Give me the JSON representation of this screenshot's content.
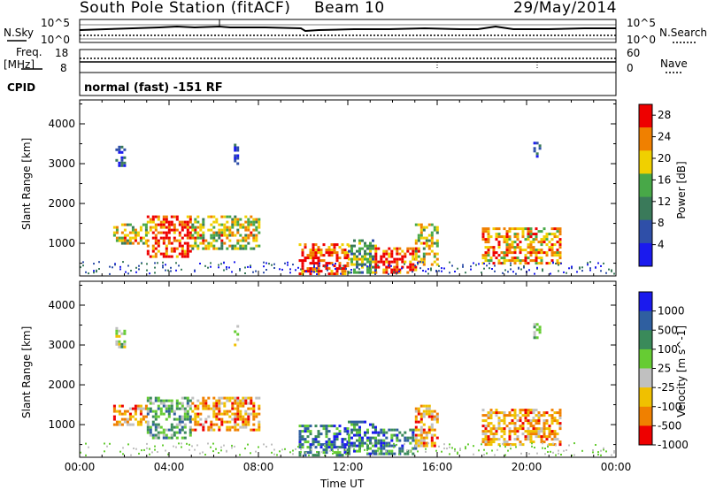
{
  "header": {
    "station": "South Pole Station (fitACF)",
    "beam": "Beam 10",
    "date": "29/May/2014"
  },
  "noise_panel": {
    "left_label": "N.Sky",
    "right_label": "N.Search",
    "left_ticks": [
      "10^5",
      "10^0"
    ],
    "right_ticks": [
      "10^5",
      "10^0"
    ]
  },
  "freq_panel": {
    "left_label_1": "Freq.",
    "left_label_2": "[MHz]",
    "right_label": "Nave",
    "left_ticks": [
      "18",
      "8"
    ],
    "right_ticks": [
      "60",
      "0"
    ]
  },
  "cpid_panel": {
    "label": "CPID",
    "text": "normal (fast) -151 RF"
  },
  "chart_data": [
    {
      "type": "heatmap",
      "title": "Power",
      "ylabel": "Slant Range [km]",
      "xlabel": "Time UT",
      "x_ticks": [
        "00:00",
        "04:00",
        "08:00",
        "12:00",
        "16:00",
        "20:00",
        "00:00"
      ],
      "y_ticks": [
        1000,
        2000,
        3000,
        4000
      ],
      "ylim": [
        180,
        4600
      ],
      "xlim_hours": [
        0,
        24
      ],
      "colorbar": {
        "label": "Power [dB]",
        "ticks": [
          "4",
          "8",
          "12",
          "16",
          "20",
          "24",
          "28"
        ],
        "range": [
          0,
          30
        ],
        "colors": [
          "#1a1aee",
          "#2f4fa8",
          "#3a7a5a",
          "#48a848",
          "#f0d000",
          "#f08000",
          "#ee0000"
        ]
      },
      "echo_regions": [
        {
          "t_start": 1.6,
          "t_end": 2.0,
          "r_min": 2950,
          "r_max": 3450,
          "level": 1
        },
        {
          "t_start": 6.9,
          "t_end": 7.1,
          "r_min": 3000,
          "r_max": 3500,
          "level": 1
        },
        {
          "t_start": 1.5,
          "t_end": 3.0,
          "r_min": 1000,
          "r_max": 1500,
          "level": 4
        },
        {
          "t_start": 3.0,
          "t_end": 5.0,
          "r_min": 700,
          "r_max": 1700,
          "level": 6
        },
        {
          "t_start": 5.0,
          "t_end": 8.0,
          "r_min": 900,
          "r_max": 1700,
          "level": 4
        },
        {
          "t_start": 9.8,
          "t_end": 12.0,
          "r_min": 250,
          "r_max": 1000,
          "level": 6
        },
        {
          "t_start": 12.0,
          "t_end": 13.2,
          "r_min": 300,
          "r_max": 1100,
          "level": 3
        },
        {
          "t_start": 13.2,
          "t_end": 15.0,
          "r_min": 300,
          "r_max": 900,
          "level": 6
        },
        {
          "t_start": 15.0,
          "t_end": 16.0,
          "r_min": 500,
          "r_max": 1500,
          "level": 4
        },
        {
          "t_start": 18.0,
          "t_end": 21.5,
          "r_min": 500,
          "r_max": 1400,
          "level": 5
        },
        {
          "t_start": 20.3,
          "t_end": 20.6,
          "r_min": 3200,
          "r_max": 3550,
          "level": 1
        }
      ]
    },
    {
      "type": "heatmap",
      "title": "Velocity",
      "ylabel": "Slant Range [km]",
      "xlabel": "Time UT",
      "x_ticks": [
        "00:00",
        "04:00",
        "08:00",
        "12:00",
        "16:00",
        "20:00",
        "00:00"
      ],
      "y_ticks": [
        1000,
        2000,
        3000,
        4000
      ],
      "ylim": [
        180,
        4600
      ],
      "xlim_hours": [
        0,
        24
      ],
      "colorbar": {
        "label": "Velocity [m s^-1]",
        "ticks": [
          "1000",
          "500",
          "100",
          "25",
          "-25",
          "-100",
          "-500",
          "-1000"
        ],
        "colors": [
          "#1a1aee",
          "#2f5fa0",
          "#3a8a5a",
          "#66cc33",
          "#c0c0c0",
          "#f0c000",
          "#f08000",
          "#ee0000"
        ]
      },
      "echo_regions": [
        {
          "t_start": 1.6,
          "t_end": 2.0,
          "r_min": 2950,
          "r_max": 3450,
          "level": 4
        },
        {
          "t_start": 6.9,
          "t_end": 7.1,
          "r_min": 3000,
          "r_max": 3500,
          "level": 5
        },
        {
          "t_start": 1.5,
          "t_end": 3.0,
          "r_min": 1000,
          "r_max": 1500,
          "level": 6
        },
        {
          "t_start": 3.0,
          "t_end": 5.0,
          "r_min": 700,
          "r_max": 1700,
          "level": 3
        },
        {
          "t_start": 5.0,
          "t_end": 8.0,
          "r_min": 900,
          "r_max": 1700,
          "level": 6
        },
        {
          "t_start": 9.8,
          "t_end": 12.0,
          "r_min": 250,
          "r_max": 1000,
          "level": 2
        },
        {
          "t_start": 12.0,
          "t_end": 13.2,
          "r_min": 300,
          "r_max": 1100,
          "level": 2
        },
        {
          "t_start": 13.2,
          "t_end": 15.0,
          "r_min": 300,
          "r_max": 900,
          "level": 2
        },
        {
          "t_start": 15.0,
          "t_end": 16.0,
          "r_min": 500,
          "r_max": 1500,
          "level": 6
        },
        {
          "t_start": 18.0,
          "t_end": 21.5,
          "r_min": 500,
          "r_max": 1400,
          "level": 6
        },
        {
          "t_start": 20.3,
          "t_end": 20.6,
          "r_min": 3200,
          "r_max": 3550,
          "level": 4
        }
      ]
    }
  ]
}
